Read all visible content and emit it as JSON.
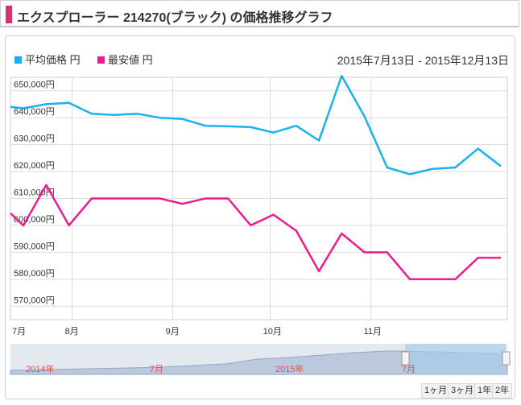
{
  "page_title": "エクスプローラー 214270(ブラック) の価格推移グラフ",
  "range_label": "2015年7月13日 - 2015年12月13日",
  "colors": {
    "avg": "#1ab2ea",
    "min": "#ee1c8e",
    "accent": "#d6336c",
    "grid": "#dcdcdc"
  },
  "zoom_buttons": [
    "1ヶ月",
    "3ヶ月",
    "1年",
    "2年"
  ],
  "navigator": {
    "labels": [
      "2014年",
      "7月",
      "2015年",
      "7月"
    ]
  },
  "chart_data": {
    "type": "line",
    "ylim": [
      565000,
      655000
    ],
    "y_ticks": [
      570000,
      580000,
      590000,
      600000,
      610000,
      620000,
      630000,
      640000,
      650000
    ],
    "y_tick_labels": [
      "570,000円",
      "580,000円",
      "590,000円",
      "600,000円",
      "610,000円",
      "620,000円",
      "630,000円",
      "640,000円",
      "650,000円"
    ],
    "x_tick_labels": [
      "7月",
      "8月",
      "9月",
      "10月",
      "11月"
    ],
    "x_ticks": [
      "2015-07-13",
      "2015-08-01",
      "2015-09-01",
      "2015-10-01",
      "2015-11-01"
    ],
    "xlim": [
      "2015-07-13",
      "2015-12-13"
    ],
    "grid": true,
    "legend_position": "top-left",
    "series": [
      {
        "name": "平均価格 円",
        "x": [
          "2015-07-13",
          "2015-07-17",
          "2015-07-24",
          "2015-07-31",
          "2015-08-07",
          "2015-08-14",
          "2015-08-21",
          "2015-08-28",
          "2015-09-04",
          "2015-09-11",
          "2015-09-18",
          "2015-09-25",
          "2015-10-02",
          "2015-10-09",
          "2015-10-16",
          "2015-10-23",
          "2015-10-30",
          "2015-11-06",
          "2015-11-13",
          "2015-11-20",
          "2015-11-27",
          "2015-12-04",
          "2015-12-11"
        ],
        "values": [
          644000,
          643500,
          645000,
          645500,
          641500,
          641000,
          641500,
          640000,
          639500,
          637000,
          636800,
          636500,
          634500,
          637000,
          631500,
          655500,
          640500,
          621500,
          619000,
          621000,
          621500,
          628500,
          622000
        ]
      },
      {
        "name": "最安値 円",
        "x": [
          "2015-07-13",
          "2015-07-17",
          "2015-07-24",
          "2015-07-31",
          "2015-08-07",
          "2015-08-14",
          "2015-08-21",
          "2015-08-28",
          "2015-09-04",
          "2015-09-11",
          "2015-09-18",
          "2015-09-25",
          "2015-10-02",
          "2015-10-09",
          "2015-10-16",
          "2015-10-23",
          "2015-10-30",
          "2015-11-06",
          "2015-11-13",
          "2015-11-20",
          "2015-11-27",
          "2015-12-04",
          "2015-12-11"
        ],
        "values": [
          604500,
          600000,
          615000,
          600000,
          610000,
          610000,
          610000,
          610000,
          608000,
          610000,
          610000,
          600000,
          604000,
          598000,
          583000,
          597000,
          590000,
          590000,
          580000,
          580000,
          580000,
          588000,
          588000
        ]
      }
    ]
  }
}
